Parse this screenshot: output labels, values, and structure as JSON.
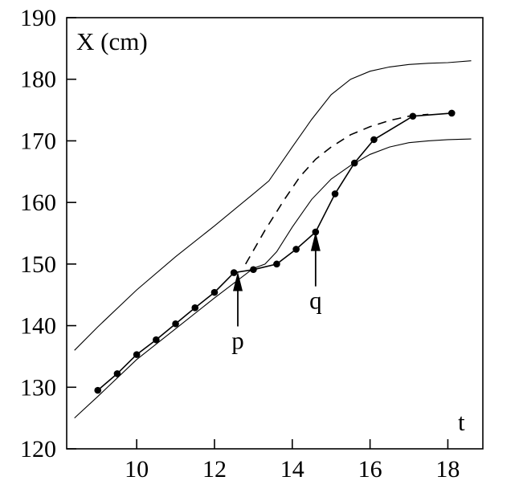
{
  "chart_data": {
    "type": "line",
    "title": "",
    "ylabel": "X (cm)",
    "xlabel": "t",
    "xlim": [
      8.2,
      18.9
    ],
    "ylim": [
      120,
      190
    ],
    "x_ticks": [
      10,
      12,
      14,
      16,
      18
    ],
    "y_ticks": [
      120,
      130,
      140,
      150,
      160,
      170,
      180,
      190
    ],
    "grid": false,
    "series": [
      {
        "style": "thin-solid",
        "x": [
          8.4,
          9.0,
          10.0,
          11.0,
          12.0,
          13.0,
          13.4,
          14.0,
          14.5,
          15.0,
          15.5,
          16.0,
          16.5,
          17.0,
          17.5,
          18.0,
          18.6
        ],
        "y": [
          136.0,
          139.8,
          145.8,
          151.2,
          156.2,
          161.4,
          163.5,
          169.0,
          173.5,
          177.5,
          180.0,
          181.3,
          182.0,
          182.4,
          182.6,
          182.7,
          183.0
        ]
      },
      {
        "style": "thin-solid",
        "x": [
          8.4,
          9.0,
          10.0,
          11.0,
          12.0,
          13.0,
          13.3,
          13.6,
          14.0,
          14.5,
          15.0,
          15.5,
          16.0,
          16.5,
          17.0,
          17.5,
          18.0,
          18.6
        ],
        "y": [
          125.0,
          128.5,
          134.5,
          139.5,
          144.5,
          149.3,
          150.0,
          152.0,
          156.0,
          160.5,
          163.8,
          166.0,
          167.8,
          169.0,
          169.7,
          170.0,
          170.2,
          170.3
        ]
      },
      {
        "style": "dashed",
        "x": [
          12.8,
          13.3,
          13.8,
          14.2,
          14.6,
          15.0,
          15.5,
          16.0,
          16.5,
          17.0,
          17.5
        ],
        "y": [
          150.0,
          155.5,
          160.5,
          164.2,
          167.0,
          169.0,
          171.0,
          172.3,
          173.3,
          174.0,
          174.3
        ]
      },
      {
        "style": "markers-line",
        "x": [
          9.0,
          9.5,
          10.0,
          10.5,
          11.0,
          11.5,
          12.0,
          12.5,
          13.0,
          13.6,
          14.1,
          14.6,
          15.1,
          15.6,
          16.1,
          17.1,
          18.1
        ],
        "y": [
          129.5,
          132.2,
          135.3,
          137.7,
          140.3,
          142.9,
          145.4,
          148.6,
          149.1,
          150.0,
          152.4,
          155.2,
          161.4,
          166.4,
          170.2,
          174.0,
          174.5
        ]
      }
    ],
    "annotations": [
      {
        "label": "p",
        "x": 12.6,
        "y_tip": 149.0
      },
      {
        "label": "q",
        "x": 14.6,
        "y_tip": 155.5
      }
    ]
  }
}
